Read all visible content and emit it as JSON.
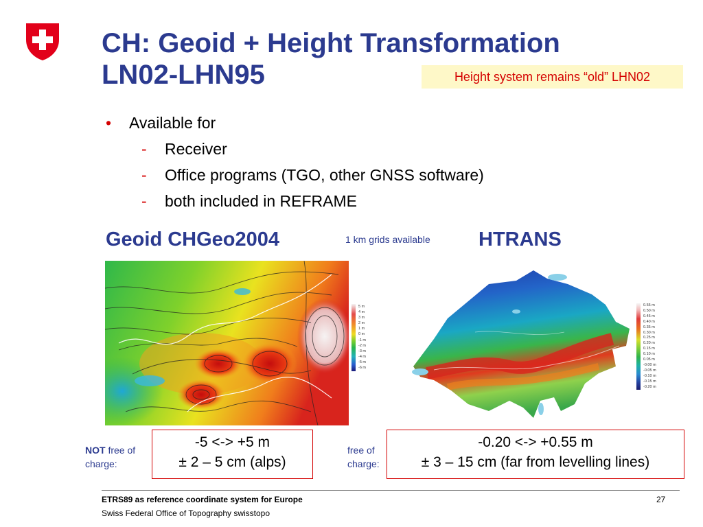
{
  "header": {
    "title_line1": "CH: Geoid + Height Transformation",
    "title_line2": "LN02-LHN95",
    "callout": "Height system remains “old” LHN02"
  },
  "bullets": {
    "main": "Available for",
    "sub": [
      "Receiver",
      "Office programs (TGO, other GNSS software)",
      "both included in REFRAME"
    ]
  },
  "geoid": {
    "heading": "Geoid CHGeo2004",
    "legend": [
      "5 m",
      "4 m",
      "3 m",
      "2 m",
      "1 m",
      "0 m",
      "-1 m",
      "-2 m",
      "-3 m",
      "-4 m",
      "-5 m",
      "-6 m"
    ],
    "range": "-5 <-> +5 m",
    "accuracy": "± 2 – 5 cm (alps)",
    "fee_emphasis": "NOT",
    "fee_rest": " free of",
    "fee_line2": "charge:"
  },
  "grid_note": "1 km grids available",
  "htrans": {
    "heading": "HTRANS",
    "legend": [
      "0.55 m",
      "0.50 m",
      "0.45 m",
      "0.40 m",
      "0.35 m",
      "0.30 m",
      "0.25 m",
      "0.20 m",
      "0.15 m",
      "0.10 m",
      "0.05 m",
      "-0.00 m",
      "-0.05 m",
      "-0.10 m",
      "-0.15 m",
      "-0.20 m"
    ],
    "range": "-0.20 <-> +0.55 m",
    "accuracy": "± 3 – 15 cm (far from levelling lines)",
    "fee_line1": "free of",
    "fee_line2": "charge:"
  },
  "footer": {
    "line1": "ETRS89 as reference coordinate system for Europe",
    "line2": "Swiss Federal Office of Topography swisstopo",
    "page": "27"
  },
  "colors": {
    "title": "#2b3a8f",
    "accent_red": "#d40000",
    "callout_bg": "#fef8c8"
  },
  "icons": {
    "logo": "swiss-shield-icon"
  }
}
